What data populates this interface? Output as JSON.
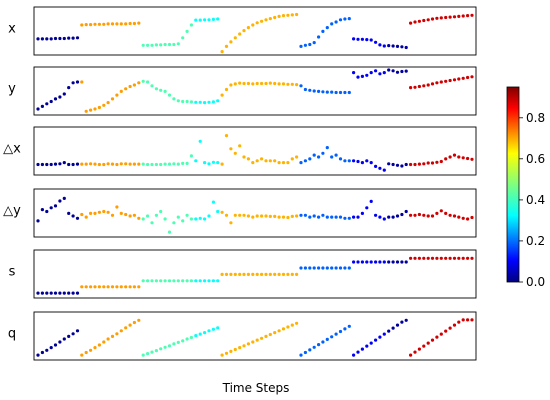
{
  "chart_data": {
    "type": "scatter",
    "xlabel": "Time Steps",
    "n_points": 100,
    "segments": [
      {
        "start": 0,
        "end": 10,
        "color_value": 0.02
      },
      {
        "start": 10,
        "end": 24,
        "color_value": 0.72
      },
      {
        "start": 24,
        "end": 36,
        "color_value": 0.45
      },
      {
        "start": 36,
        "end": 42,
        "color_value": 0.38
      },
      {
        "start": 42,
        "end": 60,
        "color_value": 0.7
      },
      {
        "start": 60,
        "end": 72,
        "color_value": 0.22
      },
      {
        "start": 72,
        "end": 80,
        "color_value": 0.12
      },
      {
        "start": 80,
        "end": 85,
        "color_value": 0.03
      },
      {
        "start": 85,
        "end": 100,
        "color_value": 0.92
      }
    ],
    "rows": [
      {
        "label": "x",
        "values": [
          0.35,
          0.35,
          0.35,
          0.35,
          0.36,
          0.36,
          0.36,
          0.37,
          0.37,
          0.38,
          0.72,
          0.73,
          0.73,
          0.74,
          0.74,
          0.74,
          0.75,
          0.75,
          0.75,
          0.75,
          0.75,
          0.76,
          0.76,
          0.77,
          0.18,
          0.18,
          0.18,
          0.19,
          0.19,
          0.2,
          0.2,
          0.2,
          0.22,
          0.38,
          0.55,
          0.72,
          0.85,
          0.85,
          0.86,
          0.86,
          0.87,
          0.88,
          0.01,
          0.15,
          0.27,
          0.38,
          0.48,
          0.57,
          0.65,
          0.72,
          0.78,
          0.82,
          0.86,
          0.89,
          0.92,
          0.95,
          0.97,
          0.98,
          0.99,
          1.0,
          0.15,
          0.18,
          0.2,
          0.25,
          0.4,
          0.55,
          0.65,
          0.75,
          0.8,
          0.86,
          0.88,
          0.89,
          0.35,
          0.34,
          0.34,
          0.33,
          0.32,
          0.26,
          0.19,
          0.16,
          0.17,
          0.16,
          0.15,
          0.14,
          0.12,
          0.77,
          0.8,
          0.82,
          0.84,
          0.86,
          0.88,
          0.9,
          0.91,
          0.92,
          0.93,
          0.94,
          0.95,
          0.96,
          0.97,
          0.98
        ]
      },
      {
        "label": "y",
        "values": [
          0.08,
          0.15,
          0.22,
          0.28,
          0.35,
          0.4,
          0.48,
          0.65,
          0.78,
          0.8,
          0.8,
          0.02,
          0.05,
          0.08,
          0.12,
          0.18,
          0.25,
          0.35,
          0.45,
          0.55,
          0.62,
          0.68,
          0.72,
          0.78,
          0.82,
          0.8,
          0.7,
          0.62,
          0.58,
          0.55,
          0.45,
          0.35,
          0.3,
          0.28,
          0.28,
          0.27,
          0.26,
          0.26,
          0.25,
          0.26,
          0.27,
          0.3,
          0.45,
          0.6,
          0.72,
          0.75,
          0.77,
          0.76,
          0.76,
          0.75,
          0.76,
          0.76,
          0.76,
          0.77,
          0.76,
          0.75,
          0.75,
          0.74,
          0.74,
          0.73,
          0.7,
          0.6,
          0.58,
          0.56,
          0.55,
          0.54,
          0.53,
          0.53,
          0.52,
          0.52,
          0.52,
          0.52,
          1.05,
          0.93,
          0.95,
          0.98,
          1.05,
          1.1,
          1.02,
          1.05,
          1.12,
          1.1,
          1.06,
          1.08,
          1.09,
          0.65,
          0.66,
          0.68,
          0.7,
          0.72,
          0.75,
          0.78,
          0.8,
          0.82,
          0.84,
          0.86,
          0.88,
          0.9,
          0.92,
          0.94
        ]
      },
      {
        "label": "△x",
        "values": [
          0.2,
          0.2,
          0.2,
          0.2,
          0.21,
          0.22,
          0.25,
          0.2,
          0.2,
          0.21,
          0.21,
          0.21,
          0.22,
          0.21,
          0.2,
          0.2,
          0.22,
          0.21,
          0.2,
          0.22,
          0.22,
          0.21,
          0.21,
          0.21,
          0.21,
          0.2,
          0.2,
          0.2,
          0.2,
          0.21,
          0.21,
          0.22,
          0.21,
          0.23,
          0.23,
          0.43,
          0.3,
          0.82,
          0.25,
          0.22,
          0.26,
          0.25,
          0.21,
          0.97,
          0.62,
          0.5,
          0.7,
          0.4,
          0.35,
          0.25,
          0.3,
          0.35,
          0.3,
          0.3,
          0.3,
          0.25,
          0.25,
          0.25,
          0.35,
          0.4,
          0.25,
          0.3,
          0.35,
          0.45,
          0.4,
          0.5,
          0.65,
          0.4,
          0.45,
          0.35,
          0.3,
          0.3,
          0.3,
          0.28,
          0.25,
          0.3,
          0.25,
          0.15,
          0.1,
          0.05,
          0.22,
          0.2,
          0.18,
          0.16,
          0.2,
          0.2,
          0.2,
          0.21,
          0.22,
          0.24,
          0.24,
          0.26,
          0.28,
          0.35,
          0.4,
          0.45,
          0.4,
          0.38,
          0.36,
          0.34
        ]
      },
      {
        "label": "△y",
        "values": [
          0.35,
          0.65,
          0.6,
          0.7,
          0.75,
          0.88,
          0.95,
          0.55,
          0.48,
          0.42,
          0.52,
          0.45,
          0.55,
          0.55,
          0.58,
          0.6,
          0.58,
          0.5,
          0.72,
          0.55,
          0.52,
          0.48,
          0.5,
          0.42,
          0.4,
          0.48,
          0.3,
          0.5,
          0.6,
          0.4,
          0.05,
          0.3,
          0.45,
          0.35,
          0.5,
          0.4,
          0.4,
          0.42,
          0.4,
          0.48,
          0.85,
          0.6,
          0.58,
          0.5,
          0.3,
          0.5,
          0.5,
          0.5,
          0.48,
          0.45,
          0.48,
          0.48,
          0.48,
          0.47,
          0.47,
          0.45,
          0.45,
          0.44,
          0.47,
          0.48,
          0.5,
          0.5,
          0.45,
          0.48,
          0.45,
          0.5,
          0.45,
          0.45,
          0.45,
          0.45,
          0.42,
          0.42,
          0.45,
          0.45,
          0.55,
          0.7,
          0.87,
          0.5,
          0.45,
          0.4,
          0.45,
          0.45,
          0.48,
          0.52,
          0.6,
          0.5,
          0.5,
          0.52,
          0.5,
          0.48,
          0.48,
          0.55,
          0.62,
          0.55,
          0.5,
          0.48,
          0.45,
          0.42,
          0.4,
          0.44
        ]
      },
      {
        "label": "s",
        "values": [
          0.05,
          0.05,
          0.05,
          0.05,
          0.05,
          0.05,
          0.05,
          0.05,
          0.05,
          0.05,
          0.22,
          0.22,
          0.22,
          0.22,
          0.22,
          0.22,
          0.22,
          0.22,
          0.22,
          0.22,
          0.22,
          0.22,
          0.22,
          0.22,
          0.38,
          0.38,
          0.38,
          0.38,
          0.38,
          0.38,
          0.38,
          0.38,
          0.38,
          0.38,
          0.38,
          0.38,
          0.38,
          0.38,
          0.38,
          0.38,
          0.38,
          0.38,
          0.55,
          0.55,
          0.55,
          0.55,
          0.55,
          0.55,
          0.55,
          0.55,
          0.55,
          0.55,
          0.55,
          0.55,
          0.55,
          0.55,
          0.55,
          0.55,
          0.55,
          0.55,
          0.72,
          0.72,
          0.72,
          0.72,
          0.72,
          0.72,
          0.72,
          0.72,
          0.72,
          0.72,
          0.72,
          0.72,
          0.88,
          0.88,
          0.88,
          0.88,
          0.88,
          0.88,
          0.88,
          0.88,
          0.88,
          0.88,
          0.88,
          0.88,
          0.88,
          0.98,
          0.98,
          0.98,
          0.98,
          0.98,
          0.98,
          0.98,
          0.98,
          0.98,
          0.98,
          0.98,
          0.98,
          0.98,
          0.98,
          0.98
        ]
      },
      {
        "label": "q",
        "values": [
          0.05,
          0.12,
          0.18,
          0.25,
          0.32,
          0.4,
          0.48,
          0.55,
          0.62,
          0.7,
          0.05,
          0.12,
          0.18,
          0.25,
          0.32,
          0.4,
          0.48,
          0.55,
          0.62,
          0.7,
          0.78,
          0.85,
          0.92,
          0.98,
          0.05,
          0.09,
          0.13,
          0.17,
          0.22,
          0.26,
          0.3,
          0.35,
          0.39,
          0.43,
          0.48,
          0.52,
          0.57,
          0.61,
          0.65,
          0.7,
          0.74,
          0.78,
          0.05,
          0.1,
          0.15,
          0.2,
          0.25,
          0.3,
          0.35,
          0.4,
          0.45,
          0.5,
          0.55,
          0.6,
          0.65,
          0.7,
          0.75,
          0.8,
          0.85,
          0.9,
          0.05,
          0.12,
          0.19,
          0.26,
          0.33,
          0.4,
          0.47,
          0.54,
          0.61,
          0.68,
          0.75,
          0.82,
          0.05,
          0.13,
          0.21,
          0.29,
          0.37,
          0.45,
          0.53,
          0.61,
          0.69,
          0.77,
          0.85,
          0.93,
          0.98,
          0.05,
          0.13,
          0.21,
          0.29,
          0.37,
          0.45,
          0.53,
          0.61,
          0.69,
          0.77,
          0.85,
          0.93,
          0.99,
          0.99,
          0.99
        ]
      }
    ],
    "colorbar": {
      "colormap": "jet",
      "min": 0.0,
      "max": 0.95,
      "ticks": [
        "0.0",
        "0.2",
        "0.4",
        "0.6",
        "0.8"
      ]
    },
    "grid": false
  }
}
